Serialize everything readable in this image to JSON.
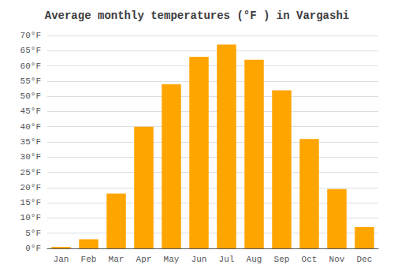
{
  "chart_data": {
    "type": "bar",
    "title": "Average monthly temperatures (°F ) in Vargashi",
    "categories": [
      "Jan",
      "Feb",
      "Mar",
      "Apr",
      "May",
      "Jun",
      "Jul",
      "Aug",
      "Sep",
      "Oct",
      "Nov",
      "Dec"
    ],
    "values": [
      0.5,
      3.0,
      18.0,
      40.0,
      54.0,
      63.0,
      67.0,
      62.0,
      52.0,
      36.0,
      19.5,
      7.0
    ],
    "color": "#FFA500",
    "ylim": [
      0,
      70
    ],
    "yticks": [
      {
        "value": 0,
        "label": "0°F"
      },
      {
        "value": 5,
        "label": "5°F"
      },
      {
        "value": 10,
        "label": "10°F"
      },
      {
        "value": 15,
        "label": "15°F"
      },
      {
        "value": 20,
        "label": "20°F"
      },
      {
        "value": 25,
        "label": "25°F"
      },
      {
        "value": 30,
        "label": "30°F"
      },
      {
        "value": 35,
        "label": "35°F"
      },
      {
        "value": 40,
        "label": "40°F"
      },
      {
        "value": 45,
        "label": "45°F"
      },
      {
        "value": 50,
        "label": "50°F"
      },
      {
        "value": 55,
        "label": "55°F"
      },
      {
        "value": 60,
        "label": "60°F"
      },
      {
        "value": 65,
        "label": "65°F"
      },
      {
        "value": 70,
        "label": "70°F"
      }
    ],
    "grid": true
  }
}
